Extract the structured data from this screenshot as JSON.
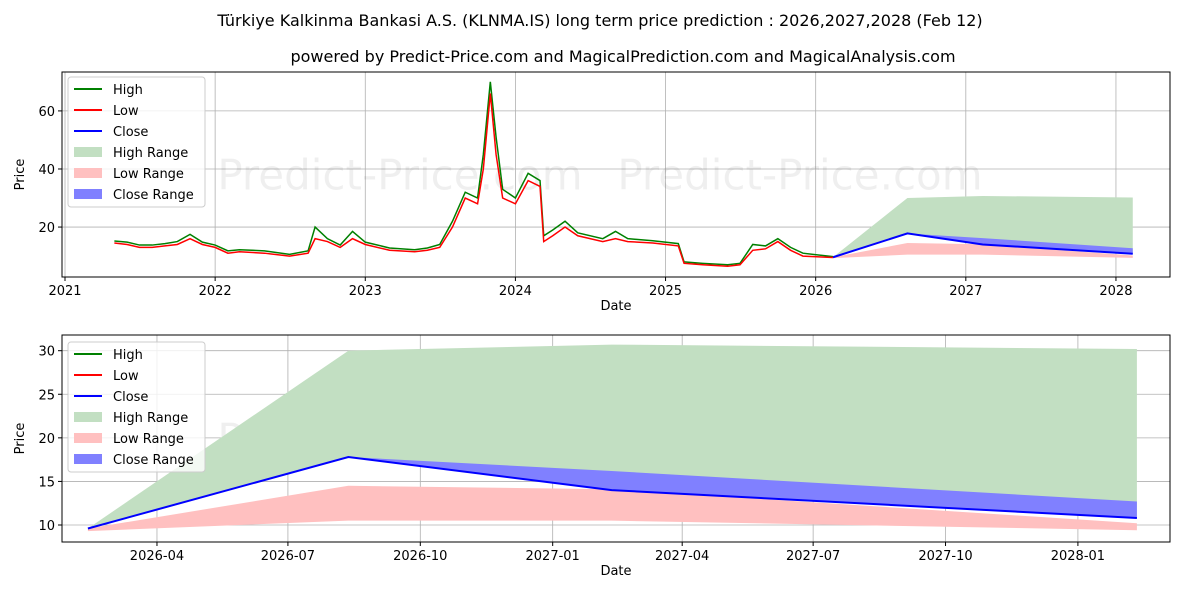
{
  "title": "Türkiye Kalkinma Bankasi A.S. (KLNMA.IS) long term price prediction : 2026,2027,2028 (Feb 12)",
  "subtitle": "powered by Predict-Price.com and MagicalPrediction.com and MagicalAnalysis.com",
  "watermark": "Predict-Price.com",
  "colors": {
    "high": "#008000",
    "low": "#ff0000",
    "close": "#0000ff",
    "high_range": "#c2dfc2",
    "low_range": "#ffc0c0",
    "close_range": "#8080ff"
  },
  "legend": [
    "High",
    "Low",
    "Close",
    "High Range",
    "Low Range",
    "Close Range"
  ],
  "chart_data": [
    {
      "type": "line",
      "xlabel": "Date",
      "ylabel": "Price",
      "xlim": [
        2020.98,
        2028.36
      ],
      "ylim": [
        2.8,
        73.4
      ],
      "xticks": [
        "2021",
        "2022",
        "2023",
        "2024",
        "2025",
        "2026",
        "2027",
        "2028"
      ],
      "yticks": [
        20,
        40,
        60
      ],
      "grid": true,
      "legend_position": "top-left",
      "history": {
        "dates": [
          "2021-05-01",
          "2021-06-01",
          "2021-07-01",
          "2021-08-01",
          "2021-09-01",
          "2021-10-01",
          "2021-11-01",
          "2021-12-01",
          "2022-01-01",
          "2022-02-01",
          "2022-03-01",
          "2022-05-01",
          "2022-07-01",
          "2022-08-15",
          "2022-09-01",
          "2022-10-01",
          "2022-11-01",
          "2022-12-01",
          "2023-01-01",
          "2023-03-01",
          "2023-05-01",
          "2023-06-01",
          "2023-07-01",
          "2023-08-01",
          "2023-09-01",
          "2023-10-01",
          "2023-10-15",
          "2023-11-01",
          "2023-11-15",
          "2023-12-01",
          "2024-01-01",
          "2024-02-01",
          "2024-03-01",
          "2024-03-10",
          "2024-04-01",
          "2024-05-01",
          "2024-06-01",
          "2024-08-01",
          "2024-09-01",
          "2024-10-01",
          "2024-12-01",
          "2025-02-01",
          "2025-02-15",
          "2025-04-01",
          "2025-06-01",
          "2025-07-01",
          "2025-08-01",
          "2025-09-01",
          "2025-10-01",
          "2025-11-01",
          "2025-12-01",
          "2026-02-12"
        ],
        "low": [
          14.5,
          14,
          13,
          13,
          13.5,
          14,
          16,
          14,
          13,
          11,
          11.5,
          11,
          10,
          11,
          16,
          15,
          13,
          16,
          14,
          12,
          11.5,
          12,
          13,
          20,
          30,
          28,
          40,
          66,
          45,
          30,
          28,
          36,
          34,
          15,
          17,
          20,
          17,
          15,
          16,
          15,
          14.5,
          13.5,
          7.5,
          7,
          6.5,
          7,
          12,
          12.5,
          15,
          12,
          10,
          9.5
        ],
        "high": [
          15.2,
          14.8,
          13.8,
          13.8,
          14.3,
          15,
          17.5,
          14.8,
          13.8,
          11.8,
          12.2,
          11.8,
          10.6,
          11.8,
          20,
          16,
          13.8,
          18.5,
          14.8,
          12.8,
          12.2,
          12.8,
          14,
          22,
          32,
          30,
          45,
          70,
          51,
          33,
          30,
          38.5,
          36,
          17,
          19,
          22,
          18,
          16,
          18.5,
          16,
          15.3,
          14.3,
          8,
          7.5,
          7,
          7.5,
          14,
          13.5,
          16,
          13,
          11,
          9.8
        ]
      }
    },
    {
      "type": "area",
      "xlabel": "Date",
      "ylabel": "Price",
      "xlim": [
        "2026-01-25",
        "2028-03-05"
      ],
      "ylim": [
        8.05,
        31.8
      ],
      "xticks": [
        "2026-04",
        "2026-07",
        "2026-10",
        "2027-01",
        "2027-04",
        "2027-07",
        "2027-10",
        "2028-01"
      ],
      "yticks": [
        10,
        15,
        20,
        25,
        30
      ],
      "grid": true,
      "legend_position": "top-left"
    }
  ],
  "forecast": {
    "dates": [
      "2026-02-12",
      "2026-08-12",
      "2027-02-11",
      "2028-02-11"
    ],
    "high_range_upper": [
      9.6,
      30.0,
      30.7,
      30.2
    ],
    "close_range_upper": [
      9.6,
      17.8,
      16.2,
      12.7
    ],
    "close": [
      9.6,
      17.8,
      14.0,
      10.8
    ],
    "low_range_upper": [
      9.6,
      14.5,
      14.1,
      10.2
    ],
    "low_range_lower": [
      9.3,
      10.5,
      10.5,
      9.4
    ]
  }
}
